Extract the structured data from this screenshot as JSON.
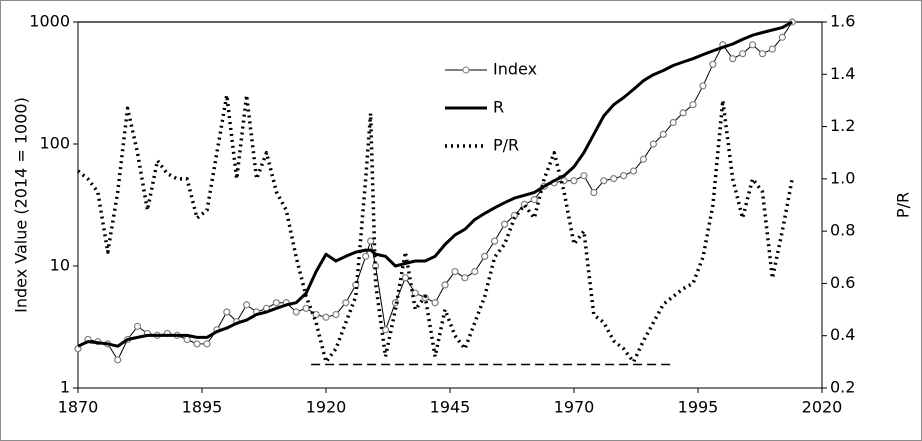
{
  "chart_data": {
    "type": "line",
    "ylabel": "Index Value (2014 = 1000)",
    "y2label": "P/R",
    "yscale": "log",
    "xlim": [
      1870,
      2020
    ],
    "xticks": [
      1870,
      1895,
      1920,
      1945,
      1970,
      1995,
      2020
    ],
    "ylim": [
      1,
      1000
    ],
    "yticks": [
      1,
      10,
      100,
      1000
    ],
    "y2lim": [
      0.2,
      1.6
    ],
    "y2ticks": [
      0.2,
      0.4,
      0.6,
      0.8,
      {
        "value": 1,
        "label": "1.0"
      },
      1.2,
      1.4,
      1.6
    ],
    "legend": "top center",
    "x": [
      1870,
      1872,
      1874,
      1876,
      1878,
      1880,
      1882,
      1884,
      1886,
      1888,
      1890,
      1892,
      1894,
      1896,
      1898,
      1900,
      1902,
      1904,
      1906,
      1908,
      1910,
      1912,
      1914,
      1916,
      1918,
      1920,
      1922,
      1924,
      1926,
      1928,
      1929,
      1930,
      1932,
      1934,
      1936,
      1938,
      1940,
      1942,
      1944,
      1946,
      1948,
      1950,
      1952,
      1954,
      1956,
      1958,
      1960,
      1962,
      1964,
      1966,
      1968,
      1970,
      1972,
      1974,
      1976,
      1978,
      1980,
      1982,
      1984,
      1986,
      1988,
      1990,
      1992,
      1994,
      1996,
      1998,
      2000,
      2002,
      2004,
      2006,
      2008,
      2010,
      2012,
      2014
    ],
    "series": [
      {
        "name": "Index",
        "color": "#000000",
        "style": "markers",
        "values": [
          2.1,
          2.5,
          2.4,
          2.3,
          1.7,
          2.5,
          3.2,
          2.8,
          2.7,
          2.8,
          2.7,
          2.5,
          2.3,
          2.3,
          3.0,
          4.2,
          3.5,
          4.8,
          4.2,
          4.5,
          5.0,
          5.0,
          4.2,
          4.5,
          4.0,
          3.8,
          4.0,
          5.0,
          7.0,
          12,
          16,
          10,
          3.0,
          5.0,
          8.0,
          6.0,
          5.5,
          5.0,
          7,
          9,
          8,
          9,
          12,
          16,
          22,
          26,
          32,
          35,
          45,
          48,
          50,
          50,
          55,
          40,
          50,
          52,
          55,
          60,
          75,
          100,
          120,
          150,
          180,
          210,
          300,
          450,
          650,
          500,
          550,
          650,
          550,
          600,
          750,
          1000
        ]
      },
      {
        "name": "R",
        "color": "#000000",
        "style": "thick",
        "values": [
          2.2,
          2.4,
          2.35,
          2.3,
          2.2,
          2.5,
          2.6,
          2.7,
          2.7,
          2.7,
          2.7,
          2.7,
          2.6,
          2.6,
          2.9,
          3.1,
          3.4,
          3.6,
          4.0,
          4.2,
          4.5,
          4.8,
          5.0,
          6,
          9,
          12.5,
          11,
          12,
          13,
          13.5,
          13.5,
          12.5,
          12,
          10,
          10.5,
          11,
          11,
          12,
          15,
          18,
          20,
          24,
          27,
          30,
          33,
          36,
          38,
          40,
          45,
          50,
          55,
          65,
          85,
          120,
          170,
          210,
          240,
          280,
          330,
          370,
          400,
          440,
          470,
          500,
          540,
          580,
          620,
          660,
          720,
          780,
          820,
          860,
          900,
          1000
        ]
      },
      {
        "name": "P/R",
        "color": "#000000",
        "style": "dotted",
        "axis": "y2",
        "values": [
          1.03,
          1.0,
          0.95,
          0.72,
          0.95,
          1.27,
          1.1,
          0.88,
          1.07,
          1.02,
          1.0,
          1.0,
          0.85,
          0.88,
          1.1,
          1.32,
          1.0,
          1.32,
          1.0,
          1.1,
          0.95,
          0.88,
          0.7,
          0.55,
          0.45,
          0.3,
          0.35,
          0.45,
          0.55,
          1.0,
          1.25,
          0.6,
          0.32,
          0.5,
          0.72,
          0.5,
          0.55,
          0.32,
          0.5,
          0.4,
          0.35,
          0.45,
          0.55,
          0.7,
          0.75,
          0.85,
          0.9,
          0.85,
          1.0,
          1.1,
          0.95,
          0.75,
          0.8,
          0.48,
          0.45,
          0.38,
          0.35,
          0.3,
          0.38,
          0.45,
          0.52,
          0.55,
          0.58,
          0.6,
          0.7,
          0.9,
          1.3,
          1.0,
          0.85,
          1.0,
          0.95,
          0.62,
          0.8,
          1.0
        ]
      }
    ],
    "reference_line": {
      "x": [
        1917,
        1990
      ],
      "y": 0.29,
      "axis": "y2",
      "style": "dashed"
    }
  }
}
